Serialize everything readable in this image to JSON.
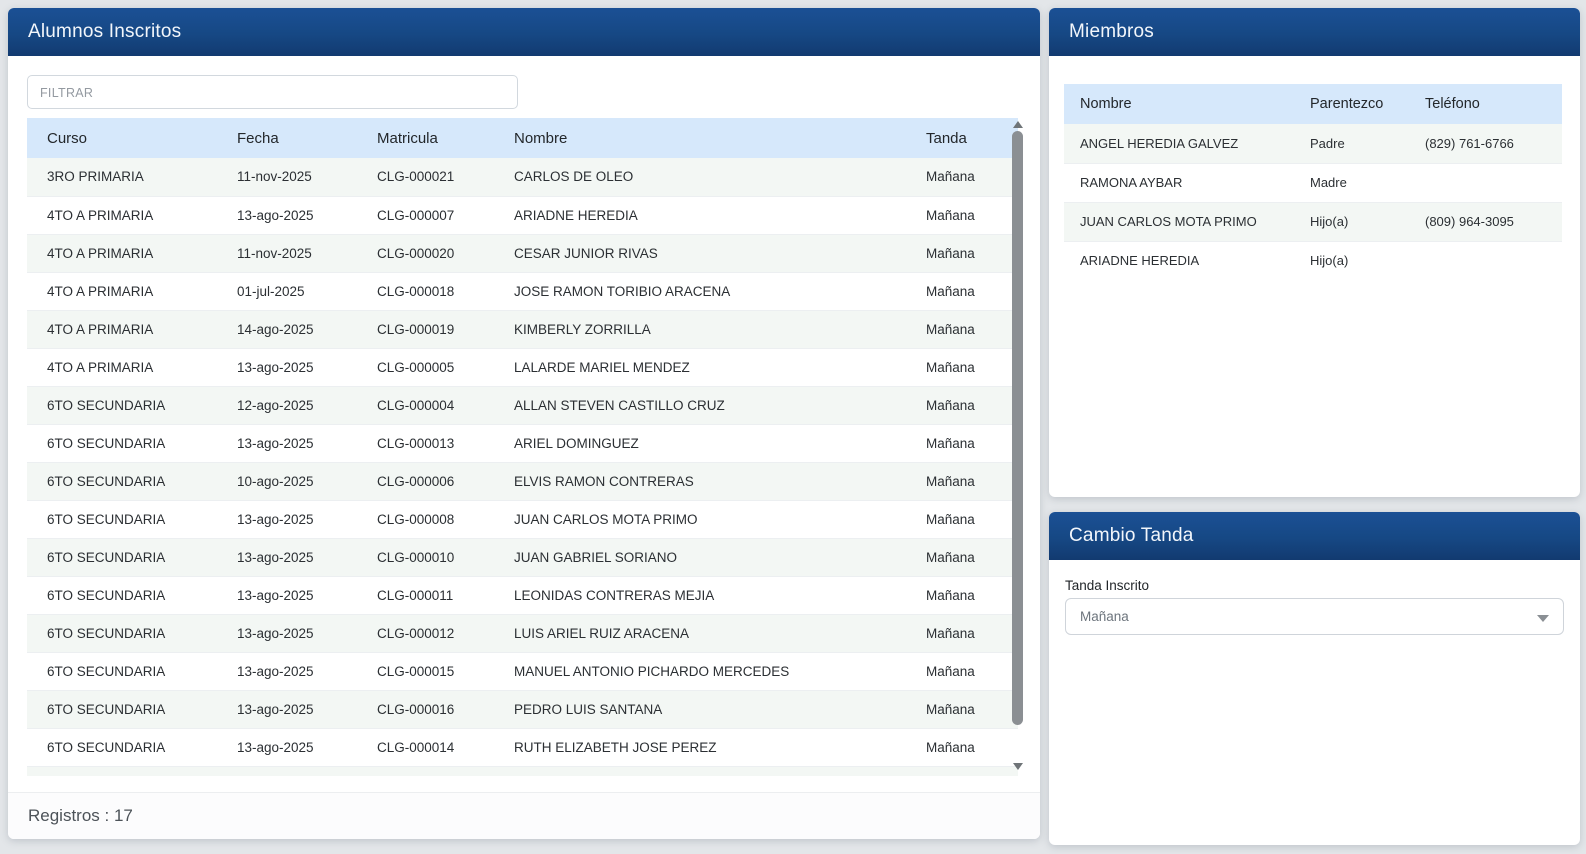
{
  "colors": {
    "header_blue": "#164884",
    "table_head_blue": "#d6e8fb",
    "stripe": "#f3f7f4",
    "page_background": "#e3e6e9"
  },
  "alumnos": {
    "title": "Alumnos Inscritos",
    "filter_placeholder": "FILTRAR",
    "columns": [
      "Curso",
      "Fecha",
      "Matricula",
      "Nombre",
      "Tanda"
    ],
    "rows": [
      [
        "3RO PRIMARIA",
        "11-nov-2025",
        "CLG-000021",
        "CARLOS DE OLEO",
        "Mañana"
      ],
      [
        "4TO A PRIMARIA",
        "13-ago-2025",
        "CLG-000007",
        "ARIADNE HEREDIA",
        "Mañana"
      ],
      [
        "4TO A PRIMARIA",
        "11-nov-2025",
        "CLG-000020",
        "CESAR JUNIOR RIVAS",
        "Mañana"
      ],
      [
        "4TO A PRIMARIA",
        "01-jul-2025",
        "CLG-000018",
        "JOSE RAMON TORIBIO ARACENA",
        "Mañana"
      ],
      [
        "4TO A PRIMARIA",
        "14-ago-2025",
        "CLG-000019",
        "KIMBERLY ZORRILLA",
        "Mañana"
      ],
      [
        "4TO A PRIMARIA",
        "13-ago-2025",
        "CLG-000005",
        "LALARDE MARIEL MENDEZ",
        "Mañana"
      ],
      [
        "6TO SECUNDARIA",
        "12-ago-2025",
        "CLG-000004",
        "ALLAN STEVEN CASTILLO CRUZ",
        "Mañana"
      ],
      [
        "6TO SECUNDARIA",
        "13-ago-2025",
        "CLG-000013",
        "ARIEL DOMINGUEZ",
        "Mañana"
      ],
      [
        "6TO SECUNDARIA",
        "10-ago-2025",
        "CLG-000006",
        "ELVIS RAMON CONTRERAS",
        "Mañana"
      ],
      [
        "6TO SECUNDARIA",
        "13-ago-2025",
        "CLG-000008",
        "JUAN CARLOS MOTA PRIMO",
        "Mañana"
      ],
      [
        "6TO SECUNDARIA",
        "13-ago-2025",
        "CLG-000010",
        "JUAN GABRIEL SORIANO",
        "Mañana"
      ],
      [
        "6TO SECUNDARIA",
        "13-ago-2025",
        "CLG-000011",
        "LEONIDAS CONTRERAS MEJIA",
        "Mañana"
      ],
      [
        "6TO SECUNDARIA",
        "13-ago-2025",
        "CLG-000012",
        "LUIS ARIEL RUIZ ARACENA",
        "Mañana"
      ],
      [
        "6TO SECUNDARIA",
        "13-ago-2025",
        "CLG-000015",
        "MANUEL ANTONIO PICHARDO MERCEDES",
        "Mañana"
      ],
      [
        "6TO SECUNDARIA",
        "13-ago-2025",
        "CLG-000016",
        "PEDRO LUIS SANTANA",
        "Mañana"
      ],
      [
        "6TO SECUNDARIA",
        "13-ago-2025",
        "CLG-000014",
        "RUTH ELIZABETH JOSE PEREZ",
        "Mañana"
      ]
    ],
    "partial_row_visible": true,
    "footer": "Registros : 17",
    "record_count": 17
  },
  "miembros": {
    "title": "Miembros",
    "columns": [
      "Nombre",
      "Parentezco",
      "Teléfono"
    ],
    "rows": [
      [
        "ANGEL HEREDIA GALVEZ",
        "Padre",
        "(829) 761-6766"
      ],
      [
        "RAMONA AYBAR",
        "Madre",
        ""
      ],
      [
        "JUAN CARLOS MOTA PRIMO",
        "Hijo(a)",
        "(809) 964-3095"
      ],
      [
        "ARIADNE HEREDIA",
        "Hijo(a)",
        ""
      ]
    ]
  },
  "cambio_tanda": {
    "title": "Cambio Tanda",
    "label": "Tanda Inscrito",
    "selected_value": "Mañana"
  }
}
